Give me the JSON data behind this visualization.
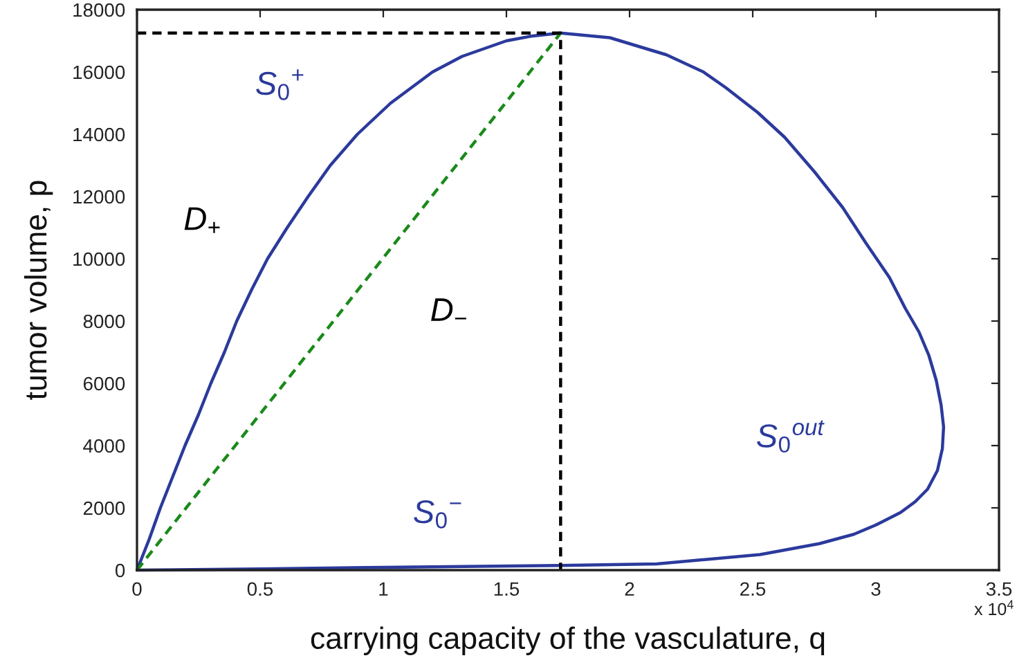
{
  "chart_data": {
    "type": "line",
    "xlabel": "carrying capacity of the vasculature, q",
    "ylabel": "tumor volume, p",
    "line_style": "solid",
    "series": [
      {
        "color": "#2b3a9c",
        "x": [
          0.5,
          0,
          0.05,
          0.095,
          0.145,
          0.195,
          0.25,
          0.3,
          0.355,
          0.405,
          0.465,
          0.53,
          0.61,
          0.695,
          0.785,
          0.895,
          1.03,
          1.2,
          1.32,
          1.5,
          1.6,
          1.72,
          1.92,
          2.15,
          2.3,
          2.39,
          2.52,
          2.63,
          2.75,
          2.865,
          2.96,
          3.055,
          3.12,
          3.175,
          3.215,
          3.245,
          3.265,
          3.275,
          3.27,
          3.25,
          3.21,
          3.16,
          3.1,
          3.0,
          2.91,
          2.77,
          2.53,
          2.11,
          1.72,
          1.0,
          0.5,
          0
        ],
        "values": [
          40,
          0,
          1000,
          2000,
          3000,
          4000,
          5000,
          6000,
          7000,
          8000,
          9000,
          10000,
          11000,
          12000,
          13000,
          14000,
          15000,
          16000,
          16500,
          17000,
          17150,
          17250,
          17100,
          16550,
          16000,
          15500,
          14700,
          13900,
          12800,
          11650,
          10500,
          9400,
          8400,
          7650,
          6900,
          6100,
          5300,
          4600,
          3900,
          3200,
          2600,
          2200,
          1850,
          1450,
          1150,
          850,
          500,
          200,
          150,
          90,
          40,
          0
        ]
      },
      {
        "color": "#1a8a1a",
        "line_style": "dashed",
        "x": [
          0,
          1.72
        ],
        "values": [
          0,
          17250
        ]
      },
      {
        "color": "#000000",
        "line_style": "dashed",
        "x": [
          0,
          1.72,
          1.72
        ],
        "values": [
          17250,
          17250,
          0
        ]
      }
    ],
    "annotations": [
      "S$_{0}$$^{+}$",
      "D$_{+}$",
      "D$_{−}$",
      "S$_{0}$$^{−}$",
      "S$_{0}$$^{out}$",
      "x 10$^{4}$"
    ],
    "xlim": [
      0,
      3.5
    ],
    "ylim": [
      0,
      18000
    ],
    "xticks": [
      0,
      0.5,
      1,
      1.5,
      2,
      2.5,
      3,
      3.5
    ],
    "yticks": [
      0,
      2000,
      4000,
      6000,
      8000,
      10000,
      12000,
      14000,
      16000,
      18000
    ]
  }
}
